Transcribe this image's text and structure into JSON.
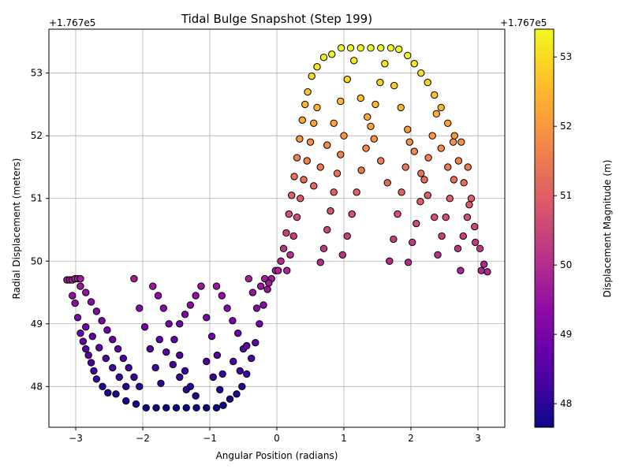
{
  "chart_data": {
    "type": "scatter",
    "title": "Tidal Bulge Snapshot (Step 199)",
    "xlabel": "Angular Position (radians)",
    "ylabel": "Radial Displacement (meters)",
    "offset_label": "+1.767e5",
    "colorbar_label": "Displacement Magnitude (m)",
    "colorbar_offset_label": "+1.767e5",
    "xlim": [
      -3.4,
      3.4
    ],
    "ylim": [
      47.35,
      53.7
    ],
    "xticks": [
      -3,
      -2,
      -1,
      0,
      1,
      2,
      3
    ],
    "yticks": [
      48,
      49,
      50,
      51,
      52,
      53
    ],
    "colorbar_range": [
      47.66,
      53.4
    ],
    "colorbar_ticks": [
      48,
      49,
      50,
      51,
      52,
      53
    ],
    "colormap": "plasma",
    "grid": true,
    "series": [
      {
        "points": [
          [
            -3.13,
            49.7
          ],
          [
            -3.09,
            49.7
          ],
          [
            -3.05,
            49.7
          ],
          [
            -3.01,
            49.72
          ],
          [
            -2.97,
            49.72
          ],
          [
            -2.93,
            49.72
          ],
          [
            -3.05,
            49.45
          ],
          [
            -3.01,
            49.33
          ],
          [
            -2.97,
            49.1
          ],
          [
            -2.93,
            48.85
          ],
          [
            -2.89,
            48.72
          ],
          [
            -2.85,
            48.6
          ],
          [
            -2.81,
            48.5
          ],
          [
            -2.77,
            48.38
          ],
          [
            -2.73,
            48.25
          ],
          [
            -2.69,
            48.12
          ],
          [
            -2.6,
            48.0
          ],
          [
            -2.52,
            47.9
          ],
          [
            -2.4,
            47.88
          ],
          [
            -2.25,
            47.77
          ],
          [
            -2.1,
            47.72
          ],
          [
            -1.95,
            47.66
          ],
          [
            -1.8,
            47.66
          ],
          [
            -1.65,
            47.66
          ],
          [
            -1.5,
            47.66
          ],
          [
            -1.35,
            47.66
          ],
          [
            -1.2,
            47.66
          ],
          [
            -1.05,
            47.66
          ],
          [
            -0.9,
            47.66
          ],
          [
            -0.8,
            47.7
          ],
          [
            -0.7,
            47.8
          ],
          [
            -0.6,
            47.88
          ],
          [
            -0.52,
            48.0
          ],
          [
            -0.45,
            48.2
          ],
          [
            -0.38,
            48.45
          ],
          [
            -0.32,
            48.7
          ],
          [
            -0.26,
            49.0
          ],
          [
            -0.2,
            49.3
          ],
          [
            -0.14,
            49.55
          ],
          [
            -0.08,
            49.72
          ],
          [
            -0.02,
            49.85
          ],
          [
            -2.93,
            49.6
          ],
          [
            -2.85,
            49.5
          ],
          [
            -2.77,
            49.35
          ],
          [
            -2.69,
            49.2
          ],
          [
            -2.61,
            49.05
          ],
          [
            -2.53,
            48.9
          ],
          [
            -2.45,
            48.75
          ],
          [
            -2.37,
            48.6
          ],
          [
            -2.29,
            48.45
          ],
          [
            -2.21,
            48.3
          ],
          [
            -2.13,
            48.15
          ],
          [
            -2.05,
            48.0
          ],
          [
            -2.13,
            49.72
          ],
          [
            -2.05,
            49.25
          ],
          [
            -1.97,
            48.95
          ],
          [
            -1.89,
            48.6
          ],
          [
            -1.81,
            48.3
          ],
          [
            -1.73,
            48.05
          ],
          [
            -1.85,
            49.6
          ],
          [
            -1.77,
            49.45
          ],
          [
            -1.69,
            49.25
          ],
          [
            -1.61,
            49.0
          ],
          [
            -1.53,
            48.75
          ],
          [
            -1.45,
            48.5
          ],
          [
            -1.37,
            48.25
          ],
          [
            -1.29,
            48.0
          ],
          [
            -1.21,
            47.85
          ],
          [
            -1.45,
            49.0
          ],
          [
            -1.37,
            49.15
          ],
          [
            -1.29,
            49.3
          ],
          [
            -1.21,
            49.45
          ],
          [
            -1.13,
            49.6
          ],
          [
            -1.05,
            49.1
          ],
          [
            -0.97,
            48.8
          ],
          [
            -0.89,
            48.5
          ],
          [
            -0.81,
            48.2
          ],
          [
            -0.9,
            49.6
          ],
          [
            -0.82,
            49.45
          ],
          [
            -0.74,
            49.25
          ],
          [
            -0.66,
            49.05
          ],
          [
            -0.58,
            48.85
          ],
          [
            -0.5,
            48.6
          ],
          [
            -0.42,
            49.72
          ],
          [
            -0.36,
            49.5
          ],
          [
            -0.3,
            49.25
          ],
          [
            -0.24,
            49.6
          ],
          [
            -0.18,
            49.72
          ],
          [
            -0.12,
            49.65
          ],
          [
            -2.85,
            48.95
          ],
          [
            -2.75,
            48.8
          ],
          [
            -2.65,
            48.62
          ],
          [
            -2.55,
            48.45
          ],
          [
            -2.45,
            48.3
          ],
          [
            -2.35,
            48.15
          ],
          [
            -2.25,
            48.0
          ],
          [
            -1.75,
            48.75
          ],
          [
            -1.65,
            48.55
          ],
          [
            -1.55,
            48.35
          ],
          [
            -1.45,
            48.15
          ],
          [
            -1.35,
            47.95
          ],
          [
            -1.05,
            48.4
          ],
          [
            -0.95,
            48.15
          ],
          [
            -0.85,
            47.95
          ],
          [
            -0.65,
            48.4
          ],
          [
            -0.55,
            48.25
          ],
          [
            -0.45,
            48.65
          ],
          [
            0.02,
            49.85
          ],
          [
            0.06,
            50.0
          ],
          [
            0.1,
            50.2
          ],
          [
            0.14,
            50.45
          ],
          [
            0.18,
            50.75
          ],
          [
            0.22,
            51.05
          ],
          [
            0.26,
            51.35
          ],
          [
            0.3,
            51.65
          ],
          [
            0.34,
            51.95
          ],
          [
            0.38,
            52.25
          ],
          [
            0.42,
            52.5
          ],
          [
            0.46,
            52.7
          ],
          [
            0.52,
            52.95
          ],
          [
            0.6,
            53.1
          ],
          [
            0.7,
            53.25
          ],
          [
            0.82,
            53.3
          ],
          [
            0.96,
            53.4
          ],
          [
            1.1,
            53.4
          ],
          [
            1.25,
            53.4
          ],
          [
            1.4,
            53.4
          ],
          [
            1.55,
            53.4
          ],
          [
            1.7,
            53.4
          ],
          [
            1.82,
            53.38
          ],
          [
            1.95,
            53.28
          ],
          [
            2.05,
            53.15
          ],
          [
            2.15,
            53.0
          ],
          [
            2.25,
            52.85
          ],
          [
            2.35,
            52.65
          ],
          [
            2.45,
            52.45
          ],
          [
            2.55,
            52.2
          ],
          [
            2.63,
            51.9
          ],
          [
            2.71,
            51.6
          ],
          [
            2.79,
            51.25
          ],
          [
            2.87,
            50.9
          ],
          [
            2.95,
            50.55
          ],
          [
            3.03,
            50.2
          ],
          [
            3.09,
            49.95
          ],
          [
            3.14,
            49.83
          ],
          [
            0.15,
            49.85
          ],
          [
            0.2,
            50.1
          ],
          [
            0.25,
            50.4
          ],
          [
            0.3,
            50.7
          ],
          [
            0.35,
            51.0
          ],
          [
            0.4,
            51.3
          ],
          [
            0.45,
            51.6
          ],
          [
            0.5,
            51.9
          ],
          [
            0.55,
            52.2
          ],
          [
            0.6,
            52.45
          ],
          [
            0.65,
            49.98
          ],
          [
            0.7,
            50.2
          ],
          [
            0.75,
            50.5
          ],
          [
            0.8,
            50.8
          ],
          [
            0.85,
            51.1
          ],
          [
            0.9,
            51.4
          ],
          [
            0.95,
            51.7
          ],
          [
            1.0,
            52.0
          ],
          [
            0.98,
            50.1
          ],
          [
            1.05,
            50.4
          ],
          [
            1.12,
            50.75
          ],
          [
            1.19,
            51.1
          ],
          [
            1.26,
            51.45
          ],
          [
            1.33,
            51.8
          ],
          [
            1.4,
            52.15
          ],
          [
            1.47,
            52.5
          ],
          [
            1.54,
            52.85
          ],
          [
            1.61,
            53.15
          ],
          [
            1.68,
            50.0
          ],
          [
            1.74,
            50.35
          ],
          [
            1.8,
            50.75
          ],
          [
            1.86,
            51.1
          ],
          [
            1.92,
            51.5
          ],
          [
            1.98,
            51.9
          ],
          [
            1.96,
            49.98
          ],
          [
            2.02,
            50.3
          ],
          [
            2.08,
            50.6
          ],
          [
            2.14,
            50.95
          ],
          [
            2.2,
            51.3
          ],
          [
            2.26,
            51.65
          ],
          [
            2.32,
            52.0
          ],
          [
            2.38,
            52.35
          ],
          [
            2.4,
            50.1
          ],
          [
            2.46,
            50.4
          ],
          [
            2.52,
            50.7
          ],
          [
            2.58,
            51.0
          ],
          [
            2.64,
            51.3
          ],
          [
            2.7,
            50.2
          ],
          [
            2.74,
            49.85
          ],
          [
            2.78,
            50.4
          ],
          [
            2.84,
            50.7
          ],
          [
            2.9,
            51.0
          ],
          [
            2.96,
            50.3
          ],
          [
            3.05,
            49.85
          ],
          [
            0.55,
            51.2
          ],
          [
            0.65,
            51.5
          ],
          [
            0.75,
            51.85
          ],
          [
            0.85,
            52.2
          ],
          [
            0.95,
            52.55
          ],
          [
            1.05,
            52.9
          ],
          [
            1.15,
            53.2
          ],
          [
            1.25,
            52.6
          ],
          [
            1.35,
            52.3
          ],
          [
            1.45,
            51.95
          ],
          [
            1.55,
            51.6
          ],
          [
            1.65,
            51.25
          ],
          [
            1.75,
            52.8
          ],
          [
            1.85,
            52.45
          ],
          [
            1.95,
            52.1
          ],
          [
            2.05,
            51.75
          ],
          [
            2.15,
            51.4
          ],
          [
            2.25,
            51.05
          ],
          [
            2.35,
            50.7
          ],
          [
            2.45,
            51.8
          ],
          [
            2.55,
            51.5
          ],
          [
            2.65,
            52.0
          ],
          [
            2.75,
            51.9
          ],
          [
            2.85,
            51.5
          ]
        ]
      }
    ]
  }
}
